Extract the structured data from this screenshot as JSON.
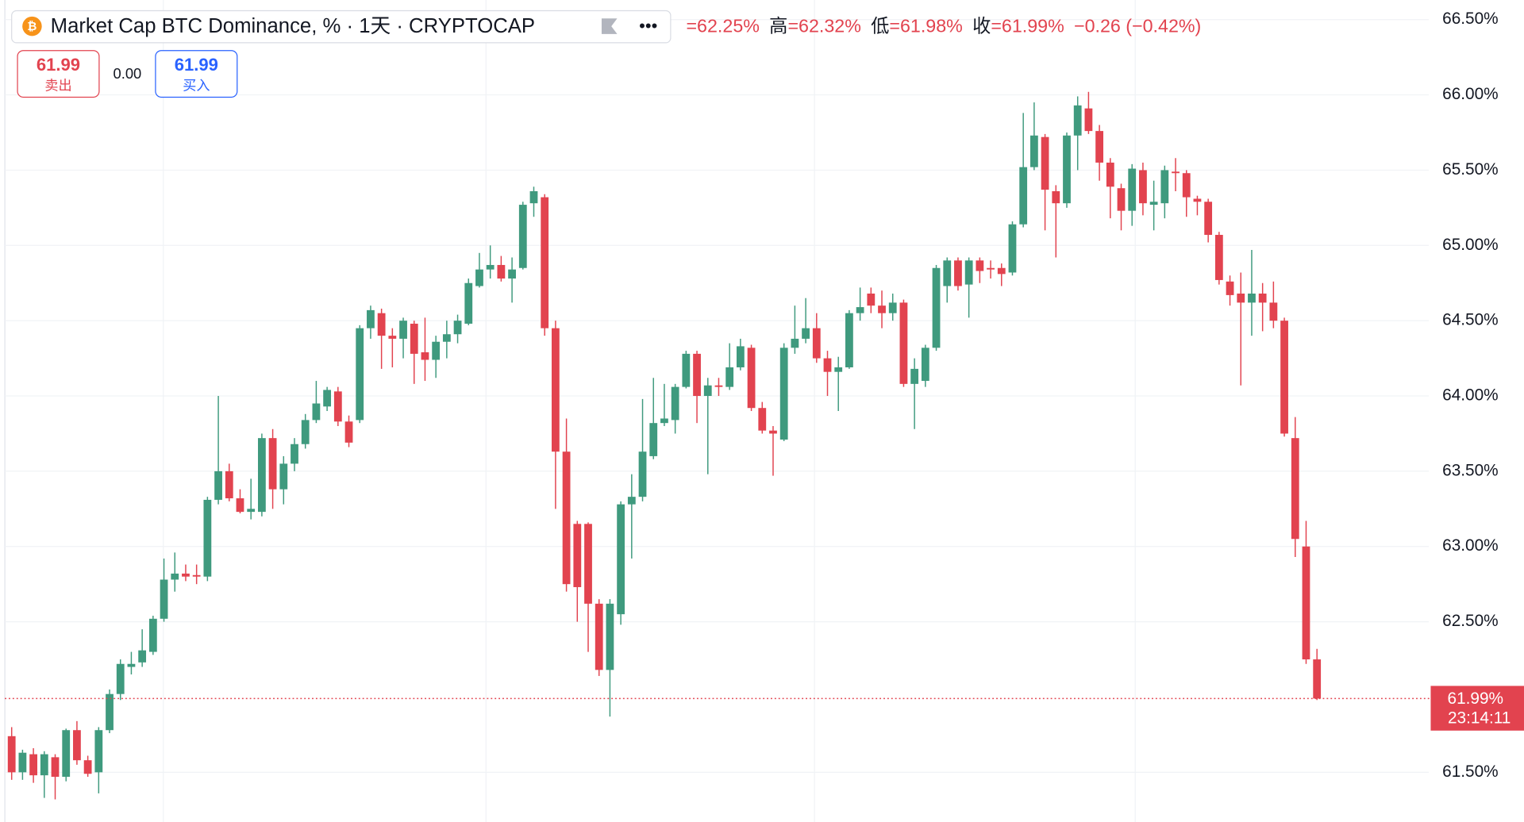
{
  "chart_data": {
    "type": "candlestick",
    "title": "Market Cap BTC Dominance, % · 1天 · CRYPTOCAP",
    "ohlc_legend": [
      {
        "text": "=62.25%"
      },
      {
        "name": "高",
        "text": "=62.32%"
      },
      {
        "name": "低",
        "text": "=61.98%"
      },
      {
        "name": "收",
        "text": "=61.99%"
      },
      {
        "text": "−0.26 (−0.42%)"
      }
    ],
    "sell": {
      "price": "61.99",
      "label": "卖出"
    },
    "spread": "0.00",
    "buy": {
      "price": "61.99",
      "label": "买入"
    },
    "last_price": {
      "value": 61.99,
      "label": "61.99%"
    },
    "countdown": "23:14:11",
    "up_color": "#3f9a7e",
    "down_color": "#e2434f",
    "ylim": [
      61.17,
      66.63
    ],
    "yticks": [
      {
        "value": 61.5,
        "label": "61.50%"
      },
      {
        "value": 62.5,
        "label": "62.50%"
      },
      {
        "value": 63.0,
        "label": "63.00%"
      },
      {
        "value": 63.5,
        "label": "63.50%"
      },
      {
        "value": 64.0,
        "label": "64.00%"
      },
      {
        "value": 64.5,
        "label": "64.50%"
      },
      {
        "value": 65.0,
        "label": "65.00%"
      },
      {
        "value": 65.5,
        "label": "65.50%"
      },
      {
        "value": 66.0,
        "label": "66.00%"
      },
      {
        "value": 66.5,
        "label": "66.50%"
      }
    ],
    "grid": true,
    "open": [
      61.74,
      61.5,
      61.62,
      61.48,
      61.6,
      61.47,
      61.78,
      61.58,
      61.5,
      61.78,
      62.02,
      62.2,
      62.23,
      62.3,
      62.52,
      62.78,
      62.82,
      62.81,
      62.8,
      63.31,
      63.5,
      63.32,
      63.23,
      63.23,
      63.72,
      63.38,
      63.55,
      63.68,
      63.84,
      63.93,
      64.03,
      63.83,
      63.84,
      64.45,
      64.55,
      64.4,
      64.38,
      64.48,
      64.29,
      64.24,
      64.36,
      64.41,
      64.48,
      64.73,
      64.84,
      64.87,
      64.78,
      64.85,
      65.28,
      65.32,
      64.45,
      63.63,
      63.15,
      63.15,
      62.62,
      62.18,
      62.55,
      63.28,
      63.33,
      63.6,
      63.82,
      63.84,
      64.06,
      64.28,
      64.0,
      64.07,
      64.06,
      64.19,
      64.32,
      63.92,
      63.77,
      63.71,
      64.32,
      64.38,
      64.45,
      64.25,
      64.16,
      64.19,
      64.55,
      64.68,
      64.6,
      64.55,
      64.62,
      64.08,
      64.1,
      64.32,
      64.73,
      64.9,
      64.74,
      64.9,
      64.85,
      64.85,
      64.82,
      65.14,
      65.52,
      65.72,
      65.36,
      65.28,
      65.73,
      65.91,
      65.76,
      65.55,
      65.38,
      65.23,
      65.5,
      65.27,
      65.28,
      65.49,
      65.48,
      65.31,
      65.29,
      65.07,
      64.76,
      64.68,
      64.62,
      64.68,
      64.62,
      64.5,
      63.72,
      63.0,
      62.25
    ],
    "high": [
      61.8,
      61.65,
      61.66,
      61.64,
      61.62,
      61.79,
      61.84,
      61.61,
      61.8,
      62.05,
      62.25,
      62.3,
      62.45,
      62.54,
      62.92,
      62.96,
      62.88,
      62.88,
      63.33,
      64.0,
      63.55,
      63.38,
      63.45,
      63.75,
      63.78,
      63.6,
      63.72,
      63.88,
      64.1,
      64.06,
      64.06,
      63.87,
      64.47,
      64.6,
      64.58,
      64.45,
      64.52,
      64.5,
      64.52,
      64.4,
      64.5,
      64.54,
      64.78,
      64.95,
      65.0,
      64.93,
      64.92,
      65.29,
      65.39,
      65.34,
      64.5,
      63.85,
      63.17,
      63.16,
      62.65,
      62.65,
      63.3,
      63.48,
      63.98,
      64.12,
      64.08,
      64.08,
      64.3,
      64.3,
      64.12,
      64.12,
      64.35,
      64.38,
      64.34,
      63.96,
      63.8,
      64.35,
      64.6,
      64.65,
      64.55,
      64.3,
      64.26,
      64.57,
      64.72,
      64.72,
      64.7,
      64.68,
      64.64,
      64.25,
      64.34,
      64.87,
      64.92,
      64.92,
      64.92,
      64.92,
      64.9,
      64.88,
      65.16,
      65.88,
      65.95,
      65.74,
      65.4,
      65.75,
      65.99,
      66.02,
      65.8,
      65.58,
      65.41,
      65.54,
      65.55,
      65.43,
      65.53,
      65.58,
      65.5,
      65.33,
      65.31,
      65.09,
      64.8,
      64.82,
      64.97,
      64.75,
      64.76,
      64.52,
      63.86,
      63.17,
      62.32
    ],
    "low": [
      61.45,
      61.45,
      61.43,
      61.33,
      61.32,
      61.44,
      61.55,
      61.47,
      61.36,
      61.76,
      61.98,
      62.15,
      62.2,
      62.28,
      62.5,
      62.7,
      62.77,
      62.75,
      62.77,
      63.28,
      63.3,
      63.22,
      63.18,
      63.2,
      63.25,
      63.28,
      63.5,
      63.65,
      63.82,
      63.9,
      63.8,
      63.66,
      63.82,
      64.38,
      64.18,
      64.19,
      64.25,
      64.08,
      64.1,
      64.12,
      64.25,
      64.35,
      64.47,
      64.72,
      64.78,
      64.76,
      64.62,
      64.84,
      65.19,
      64.4,
      63.25,
      62.7,
      62.5,
      62.3,
      62.14,
      61.87,
      62.48,
      62.92,
      63.3,
      63.58,
      63.8,
      63.75,
      64.05,
      63.82,
      63.48,
      64.0,
      64.04,
      64.17,
      63.9,
      63.75,
      63.47,
      63.7,
      64.28,
      64.35,
      64.22,
      64.0,
      63.9,
      64.18,
      64.5,
      64.55,
      64.45,
      64.5,
      64.06,
      63.78,
      64.06,
      64.3,
      64.62,
      64.7,
      64.52,
      64.75,
      64.78,
      64.73,
      64.8,
      65.12,
      65.5,
      65.1,
      64.92,
      65.25,
      65.5,
      65.74,
      65.43,
      65.18,
      65.1,
      65.13,
      65.2,
      65.1,
      65.18,
      65.36,
      65.19,
      65.2,
      65.02,
      64.74,
      64.6,
      64.07,
      64.4,
      64.43,
      64.45,
      63.73,
      62.93,
      62.22,
      61.98
    ],
    "close": [
      61.5,
      61.63,
      61.48,
      61.62,
      61.47,
      61.78,
      61.58,
      61.49,
      61.78,
      62.02,
      62.22,
      62.22,
      62.31,
      62.52,
      62.78,
      62.82,
      62.8,
      62.8,
      63.31,
      63.5,
      63.32,
      63.23,
      63.25,
      63.72,
      63.38,
      63.55,
      63.68,
      63.84,
      63.95,
      64.04,
      63.83,
      63.69,
      64.45,
      64.57,
      64.4,
      64.38,
      64.5,
      64.28,
      64.24,
      64.36,
      64.41,
      64.5,
      64.75,
      64.84,
      64.87,
      64.78,
      64.84,
      65.27,
      65.36,
      64.45,
      63.63,
      62.75,
      62.73,
      62.62,
      62.18,
      62.62,
      63.28,
      63.33,
      63.63,
      63.82,
      63.85,
      64.06,
      64.28,
      64.0,
      64.07,
      64.06,
      64.19,
      64.33,
      63.92,
      63.77,
      63.75,
      64.32,
      64.38,
      64.45,
      64.25,
      64.16,
      64.19,
      64.55,
      64.59,
      64.6,
      64.55,
      64.62,
      64.08,
      64.18,
      64.32,
      64.85,
      64.9,
      64.73,
      64.9,
      64.83,
      64.84,
      64.81,
      65.14,
      65.52,
      65.73,
      65.37,
      65.28,
      65.73,
      65.93,
      65.76,
      65.55,
      65.39,
      65.23,
      65.51,
      65.28,
      65.29,
      65.5,
      65.48,
      65.32,
      65.29,
      65.07,
      64.77,
      64.67,
      64.62,
      64.68,
      64.62,
      64.5,
      63.75,
      63.05,
      62.25,
      61.99
    ]
  }
}
